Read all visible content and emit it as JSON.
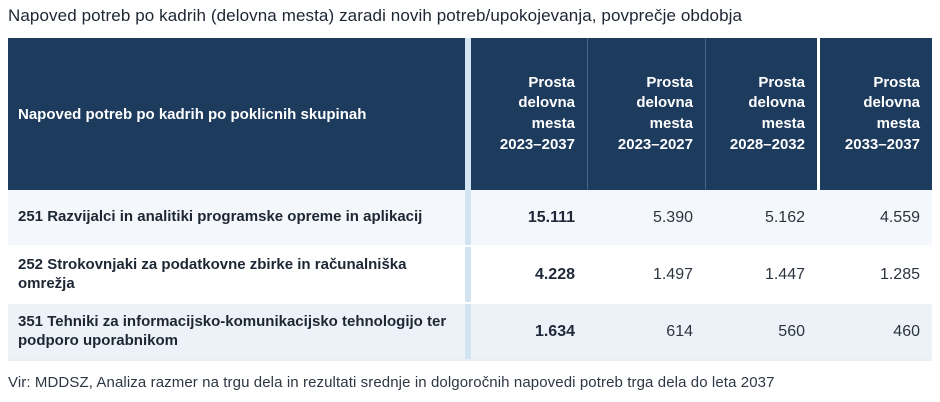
{
  "title": "Napoved potreb po kadrih (delovna mesta) zaradi novih potreb/upokojevanja, povprečje obdobja",
  "table": {
    "header": {
      "group_column": "Napoved potreb po kadrih po poklicnih skupinah",
      "value_columns": [
        {
          "label": "Prosta delovna mesta",
          "period": "2023–2037"
        },
        {
          "label": "Prosta delovna mesta",
          "period": "2023–2027"
        },
        {
          "label": "Prosta delovna mesta",
          "period": "2028–2032"
        },
        {
          "label": "Prosta delovna mesta",
          "period": "2033–2037"
        }
      ]
    },
    "rows": [
      {
        "label": "251 Razvijalci in analitiki programske opreme in aplikacij",
        "values": [
          "15.111",
          "5.390",
          "5.162",
          "4.559"
        ]
      },
      {
        "label": "252 Strokovnjaki za podatkovne zbirke in računalniška omrežja",
        "values": [
          "4.228",
          "1.497",
          "1.447",
          "1.285"
        ]
      },
      {
        "label": "351 Tehniki za informacijsko-komunikacijsko tehnologijo ter podporo uporabnikom",
        "values": [
          "1.634",
          "614",
          "560",
          "460"
        ]
      }
    ]
  },
  "source": "Vir: MDDSZ, Analiza razmer na trgu dela in rezultati srednje in dolgoročnih napovedi potreb trga dela do leta 2037"
}
